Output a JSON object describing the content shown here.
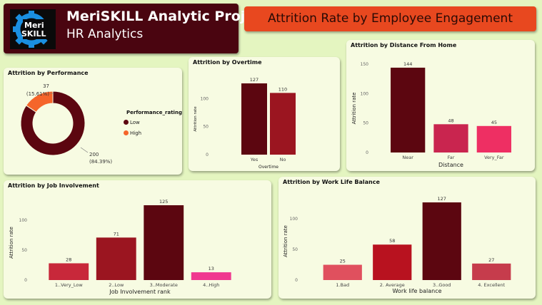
{
  "header": {
    "line1": "MeriSKILL Analytic Project",
    "line2": "HR Analytics",
    "logo_text_1": "Meri",
    "logo_text_2": "SKILL"
  },
  "banner": {
    "title": "Attrition Rate by Employee Engagement"
  },
  "colors": {
    "dark": "#5c0610",
    "red": "#9b1520",
    "orange": "#f5652a",
    "pink1": "#c9254f",
    "pink2": "#ee2f63",
    "hotpink": "#f0388f",
    "bg": "#e4f5c0"
  },
  "performance": {
    "title": "Attrition by Performance",
    "legend_title": "Performance_rating",
    "chart_data": {
      "type": "pie",
      "categories": [
        "Low",
        "High"
      ],
      "values": [
        200,
        37
      ],
      "labels": [
        "200 (84.39%)",
        "37 (15.61%)"
      ]
    }
  },
  "overtime": {
    "title": "Attrition by Overtime",
    "chart_data": {
      "type": "bar",
      "categories": [
        "Yes",
        "No"
      ],
      "values": [
        127,
        110
      ],
      "xlabel": "Overtime",
      "ylabel": "Attrition rate",
      "ylim": [
        0,
        127
      ],
      "yticks": [
        0,
        50,
        100
      ]
    }
  },
  "distance": {
    "title": "Attrition by Distance From Home",
    "chart_data": {
      "type": "bar",
      "categories": [
        "Near",
        "Far",
        "Very_Far"
      ],
      "values": [
        144,
        48,
        45
      ],
      "xlabel": "Distance",
      "ylabel": "Attrition rate",
      "ylim": [
        0,
        150
      ],
      "yticks": [
        0,
        50,
        100,
        150
      ]
    }
  },
  "jobinv": {
    "title": "Attrition by Job Involvement",
    "chart_data": {
      "type": "bar",
      "categories": [
        "1..Very_Low",
        "2..Low",
        "3..Moderate",
        "4..High"
      ],
      "values": [
        28,
        71,
        125,
        13
      ],
      "xlabel": "Job Involvement rank",
      "ylabel": "Attrition rate",
      "ylim": [
        0,
        125
      ],
      "yticks": [
        0,
        50,
        100
      ]
    }
  },
  "wlb": {
    "title": "Attrition by Work Life Balance",
    "chart_data": {
      "type": "bar",
      "categories": [
        "1.Bad",
        "2. Average",
        "3..Good",
        "4. Excellent"
      ],
      "values": [
        25,
        58,
        127,
        27
      ],
      "xlabel": "Work life balance",
      "ylabel": "Attrition rate",
      "ylim": [
        0,
        127
      ],
      "yticks": [
        0,
        50,
        100
      ]
    }
  }
}
